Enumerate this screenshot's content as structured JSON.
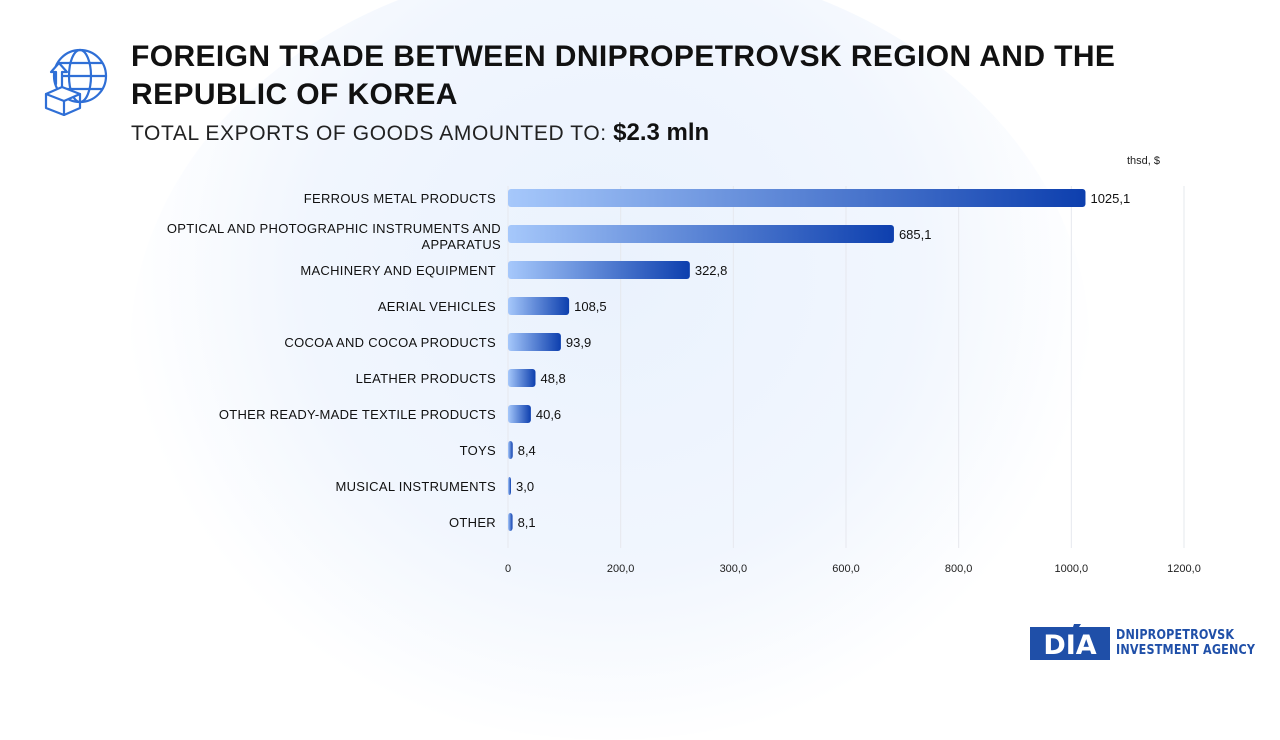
{
  "header": {
    "title": "FOREIGN TRADE BETWEEN DNIPROPETROVSK REGION AND THE REPUBLIC OF KOREA",
    "subtitle_label": "TOTAL EXPORTS OF GOODS AMOUNTED TO:",
    "subtitle_value": "$2.3 mln",
    "icon": "globe-export-box-icon"
  },
  "chart_data": {
    "type": "bar",
    "orientation": "horizontal",
    "unit_label": "thsd, $",
    "categories": [
      "FERROUS METAL PRODUCTS",
      "OPTICAL AND PHOTOGRAPHIC INSTRUMENTS AND APPARATUS",
      "MACHINERY AND EQUIPMENT",
      "AERIAL VEHICLES",
      "COCOA AND COCOA PRODUCTS",
      "LEATHER PRODUCTS",
      "OTHER READY-MADE TEXTILE PRODUCTS",
      "TOYS",
      "MUSICAL INSTRUMENTS",
      "OTHER"
    ],
    "values": [
      1025.1,
      685.1,
      322.8,
      108.5,
      93.9,
      48.8,
      40.6,
      8.4,
      3.0,
      8.1
    ],
    "value_labels": [
      "1025,1",
      "685,1",
      "322,8",
      "108,5",
      "93,9",
      "48,8",
      "40,6",
      "8,4",
      "3,0",
      "8,1"
    ],
    "x_ticks": [
      0,
      200,
      300,
      600,
      800,
      1000,
      1200
    ],
    "x_tick_labels": [
      "0",
      "200,0",
      "300,0",
      "600,0",
      "800,0",
      "1000,0",
      "1200,0"
    ],
    "xlim": [
      0,
      1200
    ],
    "grid": true,
    "colors": {
      "bar_start": "#a6c8fb",
      "bar_end": "#0d3fae",
      "grid": "#e6e8ee",
      "text": "#111111"
    }
  },
  "logo": {
    "mark": "DIA",
    "line1": "DNIPROPETROVSK",
    "line2": "INVESTMENT AGENCY",
    "color": "#1f4fa8"
  }
}
